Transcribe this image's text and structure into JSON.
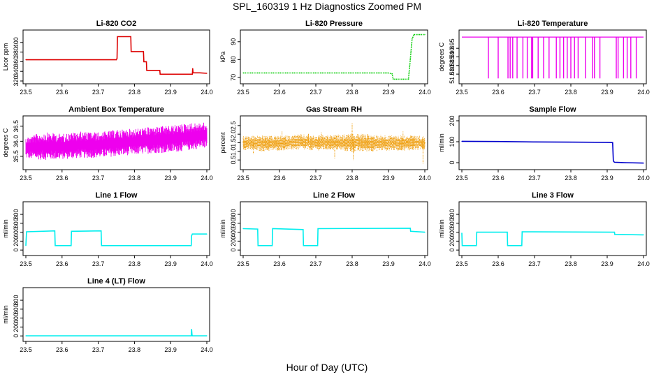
{
  "figure": {
    "title": "SPL_160319  1 Hz Diagnostics Zoomed PM",
    "xlabel": "Hour of Day (UTC)"
  },
  "chart_data": [
    {
      "type": "line",
      "title": "Li-820 CO2",
      "xlabel": "",
      "ylabel": "Licor ppm",
      "xlim": [
        23.5,
        24.0
      ],
      "ylim": [
        320,
        420
      ],
      "xticks": [
        "23.5",
        "23.6",
        "23.7",
        "23.8",
        "23.9",
        "24.0"
      ],
      "yticks": [
        320,
        340,
        360,
        380,
        400
      ],
      "grid": false,
      "series": [
        {
          "color": "#dd0000",
          "points": [
            [
              23.5,
              364
            ],
            [
              23.75,
              364
            ],
            [
              23.752,
              367
            ],
            [
              23.753,
              412
            ],
            [
              23.79,
              412
            ],
            [
              23.791,
              381
            ],
            [
              23.825,
              381
            ],
            [
              23.826,
              360
            ],
            [
              23.833,
              360
            ],
            [
              23.834,
              342
            ],
            [
              23.87,
              342
            ],
            [
              23.871,
              334
            ],
            [
              23.96,
              334
            ],
            [
              23.961,
              346
            ],
            [
              23.962,
              337
            ],
            [
              23.98,
              337
            ],
            [
              24.0,
              336
            ]
          ]
        }
      ]
    },
    {
      "type": "line",
      "title": "Li-820 Pressure",
      "xlabel": "",
      "ylabel": "kPa",
      "xlim": [
        23.5,
        24.0
      ],
      "ylim": [
        68,
        95
      ],
      "xticks": [
        "23.5",
        "23.6",
        "23.7",
        "23.8",
        "23.9",
        "24.0"
      ],
      "yticks": [
        70,
        80,
        90
      ],
      "grid": false,
      "series": [
        {
          "color": "#00cc00",
          "points": [
            [
              23.5,
              72.5
            ],
            [
              23.9,
              72.5
            ],
            [
              23.91,
              72.0
            ],
            [
              23.913,
              69.0
            ],
            [
              23.955,
              69.0
            ],
            [
              23.96,
              80.0
            ],
            [
              23.965,
              91.5
            ],
            [
              23.97,
              94.0
            ],
            [
              24.0,
              94.0
            ]
          ]
        }
      ]
    },
    {
      "type": "line",
      "title": "Li-820 Temperature",
      "xlabel": "",
      "ylabel": "degrees C",
      "xlim": [
        23.5,
        24.0
      ],
      "ylim": [
        51.676,
        51.704
      ],
      "xticks": [
        "23.5",
        "23.6",
        "23.7",
        "23.8",
        "23.9",
        "24.0"
      ],
      "yticks": [
        "51.680",
        "51.685",
        "51.690",
        "51.695"
      ],
      "grid": false,
      "series": [
        {
          "color": "#ee00ee",
          "baseline": 51.7015,
          "low": 51.6775,
          "dips": [
            23.573,
            23.6,
            23.627,
            23.633,
            23.64,
            23.652,
            23.668,
            23.68,
            23.692,
            23.695,
            23.71,
            23.725,
            23.74,
            23.76,
            23.77,
            23.78,
            23.79,
            23.8,
            23.81,
            23.82,
            23.84,
            23.86,
            23.865,
            23.88,
            23.925,
            23.93,
            23.945,
            23.955,
            23.965,
            23.98
          ]
        }
      ]
    },
    {
      "type": "line",
      "title": "Ambient Box Temperature",
      "xlabel": "",
      "ylabel": "degrees C",
      "xlim": [
        23.5,
        24.0
      ],
      "ylim": [
        35.15,
        36.75
      ],
      "xticks": [
        "23.5",
        "23.6",
        "23.7",
        "23.8",
        "23.9",
        "24.0"
      ],
      "yticks": [
        "35.5",
        "36.0",
        "36.5"
      ],
      "grid": false,
      "series": [
        {
          "color": "#ee00ee",
          "points": [
            [
              23.5,
              35.58
            ],
            [
              23.52,
              35.95
            ],
            [
              23.54,
              35.6
            ],
            [
              23.56,
              36.1
            ],
            [
              23.58,
              35.7
            ],
            [
              23.6,
              35.95
            ],
            [
              23.62,
              35.55
            ],
            [
              23.64,
              36.2
            ],
            [
              23.66,
              35.65
            ],
            [
              23.68,
              36.05
            ],
            [
              23.7,
              35.75
            ],
            [
              23.72,
              35.6
            ],
            [
              23.74,
              36.1
            ],
            [
              23.76,
              35.7
            ],
            [
              23.78,
              36.15
            ],
            [
              23.8,
              35.8
            ],
            [
              23.82,
              36.05
            ],
            [
              23.84,
              35.75
            ],
            [
              23.86,
              36.2
            ],
            [
              23.88,
              35.85
            ],
            [
              23.9,
              36.15
            ],
            [
              23.92,
              35.9
            ],
            [
              23.94,
              36.3
            ],
            [
              23.96,
              35.85
            ],
            [
              23.98,
              36.25
            ],
            [
              24.0,
              36.1
            ]
          ],
          "envelope": [
            [
              23.5,
              35.42,
              36.15
            ],
            [
              23.55,
              35.38,
              36.3
            ],
            [
              23.6,
              35.4,
              36.25
            ],
            [
              23.65,
              35.44,
              36.32
            ],
            [
              23.7,
              35.45,
              36.3
            ],
            [
              23.75,
              35.5,
              36.38
            ],
            [
              23.8,
              35.55,
              36.42
            ],
            [
              23.85,
              35.6,
              36.48
            ],
            [
              23.9,
              35.62,
              36.52
            ],
            [
              23.95,
              35.7,
              36.6
            ],
            [
              24.0,
              35.8,
              36.62
            ]
          ]
        }
      ]
    },
    {
      "type": "scatter",
      "title": "Gas Stream RH",
      "xlabel": "",
      "ylabel": "percent",
      "xlim": [
        23.5,
        24.0
      ],
      "ylim": [
        0.1,
        2.9
      ],
      "xticks": [
        "23.5",
        "23.6",
        "23.7",
        "23.8",
        "23.9",
        "24.0"
      ],
      "yticks": [
        "0.5",
        "1.0",
        "1.5",
        "2.0",
        "2.5"
      ],
      "grid": false,
      "series": [
        {
          "color": "#ee9900",
          "points": [
            [
              23.5,
              1.5
            ],
            [
              23.55,
              1.55
            ],
            [
              23.6,
              1.45
            ],
            [
              23.65,
              1.5
            ],
            [
              23.7,
              1.5
            ],
            [
              23.75,
              1.5
            ],
            [
              23.8,
              1.55
            ],
            [
              23.85,
              1.5
            ],
            [
              23.9,
              1.5
            ],
            [
              23.95,
              1.55
            ],
            [
              24.0,
              1.5
            ]
          ],
          "envelope": [
            [
              23.5,
              1.1,
              1.9
            ],
            [
              23.55,
              1.0,
              1.95
            ],
            [
              23.6,
              1.05,
              1.9
            ],
            [
              23.65,
              1.1,
              2.0
            ],
            [
              23.7,
              1.05,
              1.95
            ],
            [
              23.75,
              1.1,
              1.95
            ],
            [
              23.8,
              0.95,
              2.05
            ],
            [
              23.85,
              1.0,
              2.0
            ],
            [
              23.9,
              1.05,
              1.95
            ],
            [
              23.95,
              1.05,
              1.95
            ],
            [
              24.0,
              1.1,
              1.9
            ]
          ],
          "spikes": [
            [
              23.528,
              0.85
            ],
            [
              23.607,
              2.15
            ],
            [
              23.68,
              2.05
            ],
            [
              23.8,
              2.65
            ],
            [
              23.752,
              0.6
            ],
            [
              23.803,
              0.5
            ],
            [
              23.995,
              0.3
            ],
            [
              23.715,
              2.1
            ],
            [
              23.94,
              2.15
            ]
          ]
        }
      ]
    },
    {
      "type": "line",
      "title": "Sample Flow",
      "xlabel": "",
      "ylabel": "ml/min",
      "xlim": [
        23.5,
        24.0
      ],
      "ylim": [
        -20,
        210
      ],
      "xticks": [
        "23.5",
        "23.6",
        "23.7",
        "23.8",
        "23.9",
        "24.0"
      ],
      "yticks": [
        0,
        100,
        200
      ],
      "grid": false,
      "series": [
        {
          "color": "#0000cc",
          "points": [
            [
              23.5,
              102
            ],
            [
              23.6,
              101
            ],
            [
              23.7,
              99
            ],
            [
              23.8,
              98
            ],
            [
              23.9,
              97
            ],
            [
              23.915,
              96
            ],
            [
              23.917,
              8
            ],
            [
              23.92,
              2
            ],
            [
              23.95,
              0
            ],
            [
              24.0,
              -2
            ]
          ]
        }
      ]
    },
    {
      "type": "line",
      "title": "Line 1 Flow",
      "xlabel": "",
      "ylabel": "ml/min",
      "xlim": [
        23.5,
        24.0
      ],
      "ylim": [
        -60,
        1020
      ],
      "xticks": [
        "23.5",
        "23.6",
        "23.7",
        "23.8",
        "23.9",
        "24.0"
      ],
      "yticks": [
        0,
        200,
        400,
        600,
        800
      ],
      "grid": false,
      "series": [
        {
          "color": "#00eeee",
          "points": [
            [
              23.5,
              100
            ],
            [
              23.502,
              410
            ],
            [
              23.58,
              430
            ],
            [
              23.581,
              100
            ],
            [
              23.625,
              100
            ],
            [
              23.626,
              420
            ],
            [
              23.708,
              430
            ],
            [
              23.709,
              100
            ],
            [
              23.957,
              100
            ],
            [
              23.958,
              320
            ],
            [
              23.96,
              360
            ],
            [
              24.0,
              360
            ]
          ]
        }
      ]
    },
    {
      "type": "line",
      "title": "Line 2 Flow",
      "xlabel": "",
      "ylabel": "ml/min",
      "xlim": [
        23.5,
        24.0
      ],
      "ylim": [
        -60,
        1020
      ],
      "xticks": [
        "23.5",
        "23.6",
        "23.7",
        "23.8",
        "23.9",
        "24.0"
      ],
      "yticks": [
        0,
        200,
        400,
        600,
        800
      ],
      "grid": false,
      "series": [
        {
          "color": "#00eeee",
          "points": [
            [
              23.5,
              480
            ],
            [
              23.54,
              470
            ],
            [
              23.541,
              100
            ],
            [
              23.58,
              100
            ],
            [
              23.581,
              480
            ],
            [
              23.665,
              460
            ],
            [
              23.666,
              100
            ],
            [
              23.705,
              100
            ],
            [
              23.706,
              480
            ],
            [
              23.96,
              490
            ],
            [
              23.961,
              420
            ],
            [
              24.0,
              400
            ]
          ]
        }
      ]
    },
    {
      "type": "line",
      "title": "Line 3 Flow",
      "xlabel": "",
      "ylabel": "ml/min",
      "xlim": [
        23.5,
        24.0
      ],
      "ylim": [
        -60,
        1020
      ],
      "xticks": [
        "23.5",
        "23.6",
        "23.7",
        "23.8",
        "23.9",
        "24.0"
      ],
      "yticks": [
        0,
        200,
        400,
        600,
        800
      ],
      "grid": false,
      "series": [
        {
          "color": "#00eeee",
          "points": [
            [
              23.5,
              380
            ],
            [
              23.501,
              100
            ],
            [
              23.54,
              100
            ],
            [
              23.541,
              400
            ],
            [
              23.625,
              400
            ],
            [
              23.626,
              100
            ],
            [
              23.665,
              100
            ],
            [
              23.666,
              410
            ],
            [
              23.92,
              400
            ],
            [
              23.921,
              350
            ],
            [
              24.0,
              340
            ]
          ]
        }
      ]
    },
    {
      "type": "line",
      "title": "Line 4 (LT) Flow",
      "xlabel": "",
      "ylabel": "ml/min",
      "xlim": [
        23.5,
        24.0
      ],
      "ylim": [
        -60,
        1020
      ],
      "xticks": [
        "23.5",
        "23.6",
        "23.7",
        "23.8",
        "23.9",
        "24.0"
      ],
      "yticks": [
        0,
        200,
        400,
        600,
        800
      ],
      "grid": false,
      "series": [
        {
          "color": "#00eeee",
          "points": [
            [
              23.5,
              2
            ],
            [
              23.957,
              2
            ],
            [
              23.958,
              150
            ],
            [
              23.959,
              30
            ],
            [
              23.96,
              2
            ],
            [
              24.0,
              2
            ]
          ]
        }
      ]
    }
  ]
}
